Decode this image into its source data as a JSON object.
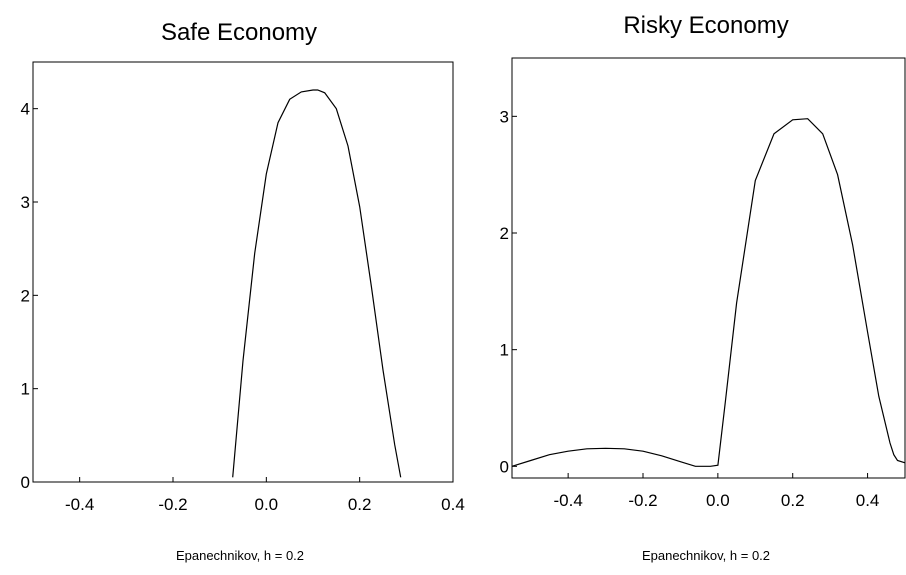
{
  "chart_data": [
    {
      "type": "line",
      "title": "Safe Economy",
      "caption": "Epanechnikov, h = 0.2",
      "xlabel": "",
      "ylabel": "",
      "xlim": [
        -0.5,
        0.4
      ],
      "ylim": [
        0,
        4.5
      ],
      "xticks": [
        -0.4,
        -0.2,
        0.0,
        0.2,
        0.4
      ],
      "xtick_labels": [
        "-0.4",
        "-0.2",
        "0.0",
        "0.2",
        "0.4"
      ],
      "yticks": [
        0,
        1,
        2,
        3,
        4
      ],
      "ytick_labels": [
        "0",
        "1",
        "2",
        "3",
        "4"
      ],
      "grid": false,
      "series": [
        {
          "x": [
            -0.072,
            -0.05,
            -0.025,
            0.0,
            0.025,
            0.05,
            0.075,
            0.1,
            0.11,
            0.125,
            0.15,
            0.175,
            0.2,
            0.225,
            0.25,
            0.275,
            0.288
          ],
          "y": [
            0.05,
            1.3,
            2.45,
            3.3,
            3.85,
            4.1,
            4.18,
            4.2,
            4.2,
            4.17,
            4.0,
            3.6,
            2.95,
            2.1,
            1.2,
            0.4,
            0.05
          ]
        }
      ]
    },
    {
      "type": "line",
      "title": "Risky Economy",
      "caption": "Epanechnikov, h = 0.2",
      "xlabel": "",
      "ylabel": "",
      "xlim": [
        -0.55,
        0.5
      ],
      "ylim": [
        -0.1,
        3.5
      ],
      "xticks": [
        -0.4,
        -0.2,
        0.0,
        0.2,
        0.4
      ],
      "xtick_labels": [
        "-0.4",
        "-0.2",
        "0.0",
        "0.2",
        "0.4"
      ],
      "yticks": [
        0,
        1,
        2,
        3
      ],
      "ytick_labels": [
        "0",
        "1",
        "2",
        "3"
      ],
      "grid": false,
      "series": [
        {
          "x": [
            -0.55,
            -0.5,
            -0.45,
            -0.4,
            -0.35,
            -0.3,
            -0.25,
            -0.2,
            -0.15,
            -0.1,
            -0.06,
            -0.02,
            0.0,
            0.02,
            0.05,
            0.1,
            0.15,
            0.2,
            0.24,
            0.28,
            0.32,
            0.36,
            0.4,
            0.43,
            0.46,
            0.47,
            0.48,
            0.5
          ],
          "y": [
            0.0,
            0.05,
            0.1,
            0.13,
            0.15,
            0.155,
            0.15,
            0.13,
            0.09,
            0.04,
            0.0,
            0.0,
            0.01,
            0.55,
            1.4,
            2.45,
            2.85,
            2.97,
            2.98,
            2.85,
            2.5,
            1.9,
            1.15,
            0.6,
            0.2,
            0.1,
            0.05,
            0.03
          ]
        }
      ]
    }
  ]
}
